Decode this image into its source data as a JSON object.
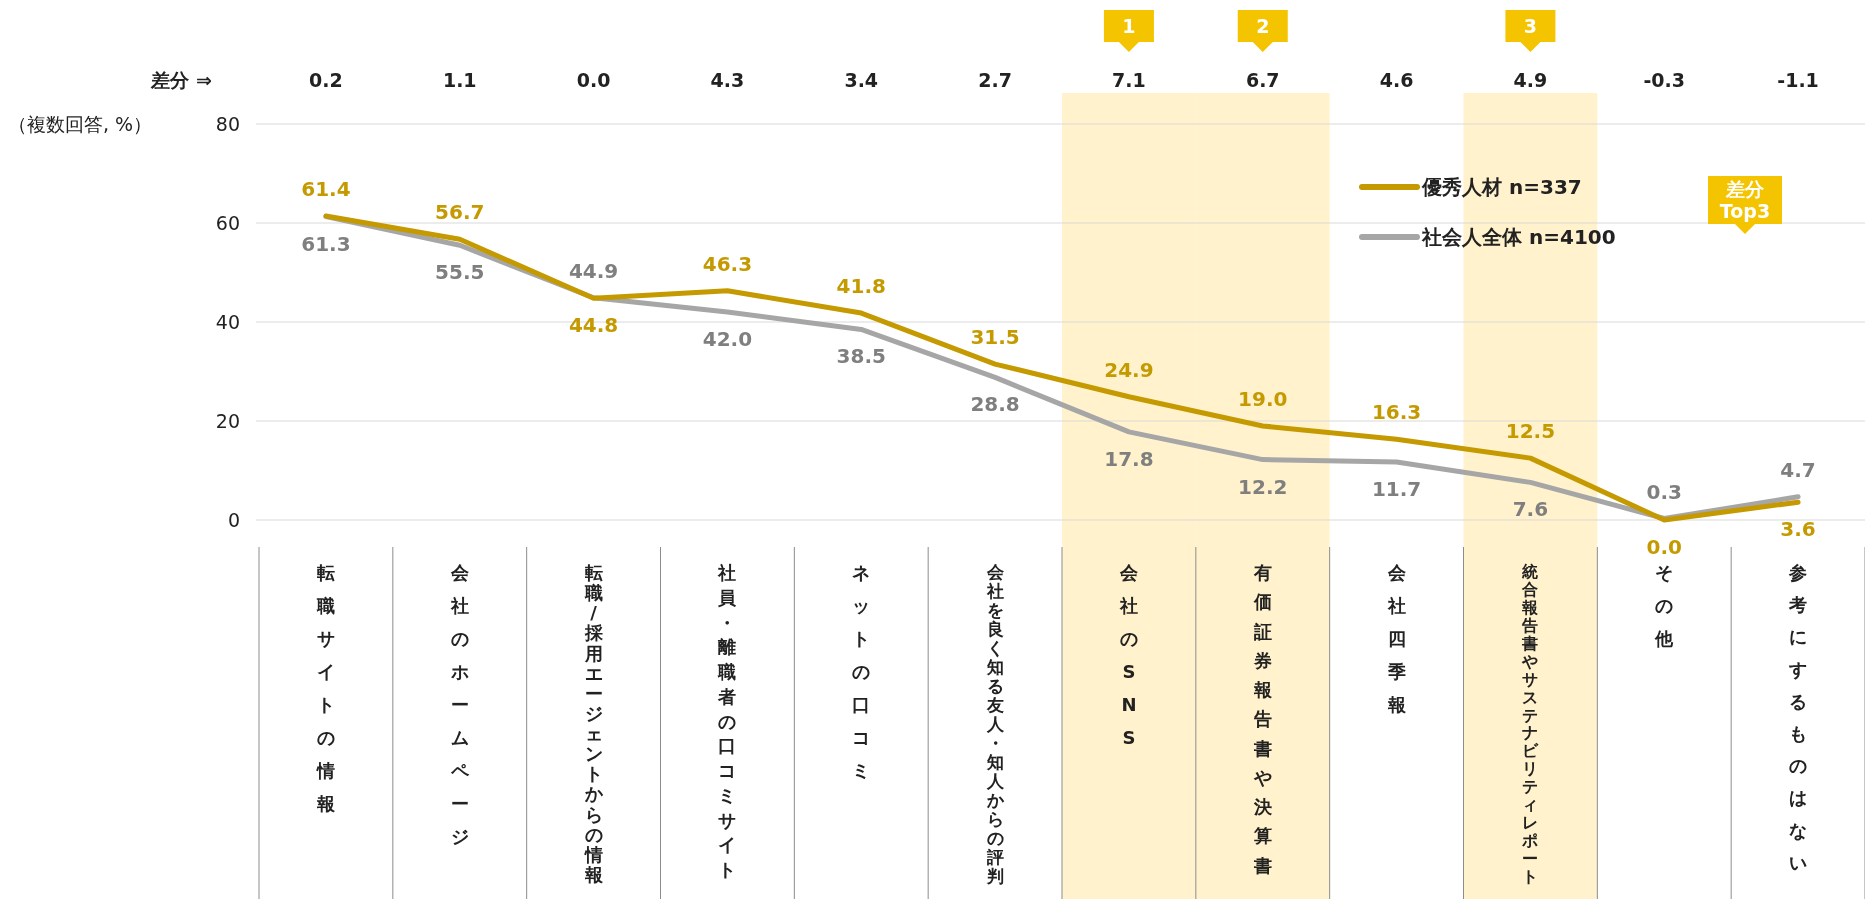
{
  "chart_data": {
    "type": "line",
    "ylabel": "（複数回答, %）",
    "ylim": [
      0,
      80
    ],
    "yticks": [
      0,
      20,
      40,
      60,
      80
    ],
    "grid": "y",
    "legend": "top right",
    "categories": [
      "転職サイトの情報",
      "会社のホームページ",
      "転職/採用エージェントからの情報",
      "社員・離職者の口コミサイト",
      "ネットの口コミ",
      "会社を良く知る友人・知人からの評判",
      "会社のSNS",
      "有価証券報告書や決算書",
      "会社四季報",
      "統合報告書やサステナビリティレポート",
      "その他",
      "参考にするものはない"
    ],
    "series": [
      {
        "name": "優秀人材 n=337",
        "color": "#c49a00",
        "values": [
          61.4,
          56.7,
          44.8,
          46.3,
          41.8,
          31.5,
          24.9,
          19.0,
          16.3,
          12.5,
          0.0,
          3.6
        ],
        "value_labels": [
          "61.4",
          "56.7",
          "44.8",
          "46.3",
          "41.8",
          "31.5",
          "24.9",
          "19.0",
          "16.3",
          "12.5",
          "0.0",
          "3.6"
        ]
      },
      {
        "name": "社会人全体 n=4100",
        "color": "#a6a6a6",
        "values": [
          61.3,
          55.5,
          44.9,
          42.0,
          38.5,
          28.8,
          17.8,
          12.2,
          11.7,
          7.6,
          0.3,
          4.7
        ],
        "value_labels": [
          "61.3",
          "55.5",
          "44.9",
          "42.0",
          "38.5",
          "28.8",
          "17.8",
          "12.2",
          "11.7",
          "7.6",
          "0.3",
          "4.7"
        ]
      }
    ],
    "bands": [
      {
        "axis": "x",
        "from": "会社のSNS",
        "to": "会社のSNS",
        "label": "1",
        "color": "#fff2cc"
      },
      {
        "axis": "x",
        "from": "有価証券報告書や決算書",
        "to": "有価証券報告書や決算書",
        "label": "2",
        "color": "#fff2cc"
      },
      {
        "axis": "x",
        "from": "統合報告書やサステナビリティレポート",
        "to": "統合報告書やサステナビリティレポート",
        "label": "3",
        "color": "#fff2cc"
      }
    ],
    "annotations": [
      "差分 ⇒",
      "差分\nTop3",
      "0.2",
      "1.1",
      "0.0",
      "4.3",
      "3.4",
      "2.7",
      "7.1",
      "6.7",
      "4.6",
      "4.9",
      "-0.3",
      "-1.1"
    ]
  }
}
